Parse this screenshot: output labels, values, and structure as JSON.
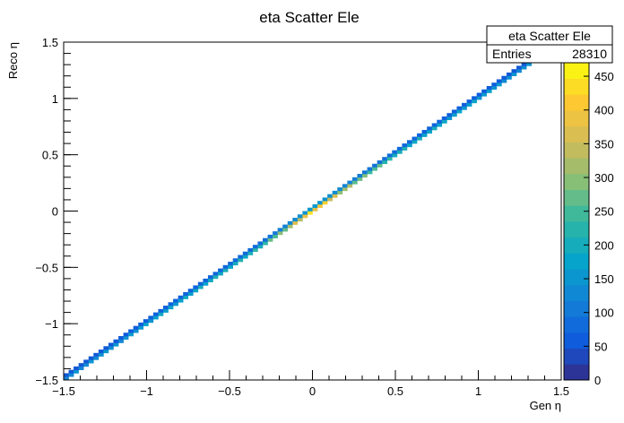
{
  "chart_data": {
    "type": "heatmap",
    "title": "eta Scatter Ele",
    "xlabel": "Gen η",
    "ylabel": "Reco η",
    "xlim": [
      -1.5,
      1.5
    ],
    "ylim": [
      -1.5,
      1.5
    ],
    "x_ticks": [
      -1.5,
      -1,
      -0.5,
      0,
      0.5,
      1,
      1.5
    ],
    "x_tick_labels": [
      "−1.5",
      "−1",
      "−0.5",
      "0",
      "0.5",
      "1",
      "1.5"
    ],
    "y_ticks": [
      -1.5,
      -1,
      -0.5,
      0,
      0.5,
      1,
      1.5
    ],
    "y_tick_labels": [
      "−1.5",
      "−1",
      "−0.5",
      "0",
      "0.5",
      "1",
      "1.5"
    ],
    "bins": {
      "x": 100,
      "y": 100
    },
    "stats_box": {
      "name": "eta Scatter Ele",
      "entries_label": "Entries",
      "entries_value": "28310"
    },
    "colorbar": {
      "ticks": [
        0,
        50,
        100,
        150,
        200,
        250,
        300,
        350,
        400,
        450
      ],
      "max": 470,
      "colors": [
        "#352a87",
        "#0f5cdd",
        "#1481d6",
        "#06a4ca",
        "#2eb7a4",
        "#87bf77",
        "#d1bb59",
        "#fec832",
        "#f9fb0e"
      ]
    },
    "series": [
      {
        "description_points": [
          {
            "x": -1.5,
            "y": -1.5,
            "z": 150
          },
          {
            "x": -1.2,
            "y": -1.2,
            "z": 160
          },
          {
            "x": -0.9,
            "y": -0.9,
            "z": 190
          },
          {
            "x": -0.6,
            "y": -0.6,
            "z": 210
          },
          {
            "x": -0.3,
            "y": -0.3,
            "z": 240
          },
          {
            "x": 0.0,
            "y": 0.0,
            "z": 460
          },
          {
            "x": 0.3,
            "y": 0.3,
            "z": 300
          },
          {
            "x": 0.6,
            "y": 0.6,
            "z": 210
          },
          {
            "x": 0.9,
            "y": 0.9,
            "z": 190
          },
          {
            "x": 1.2,
            "y": 1.2,
            "z": 160
          },
          {
            "x": 1.35,
            "y": 1.35,
            "z": 150
          }
        ]
      }
    ]
  }
}
